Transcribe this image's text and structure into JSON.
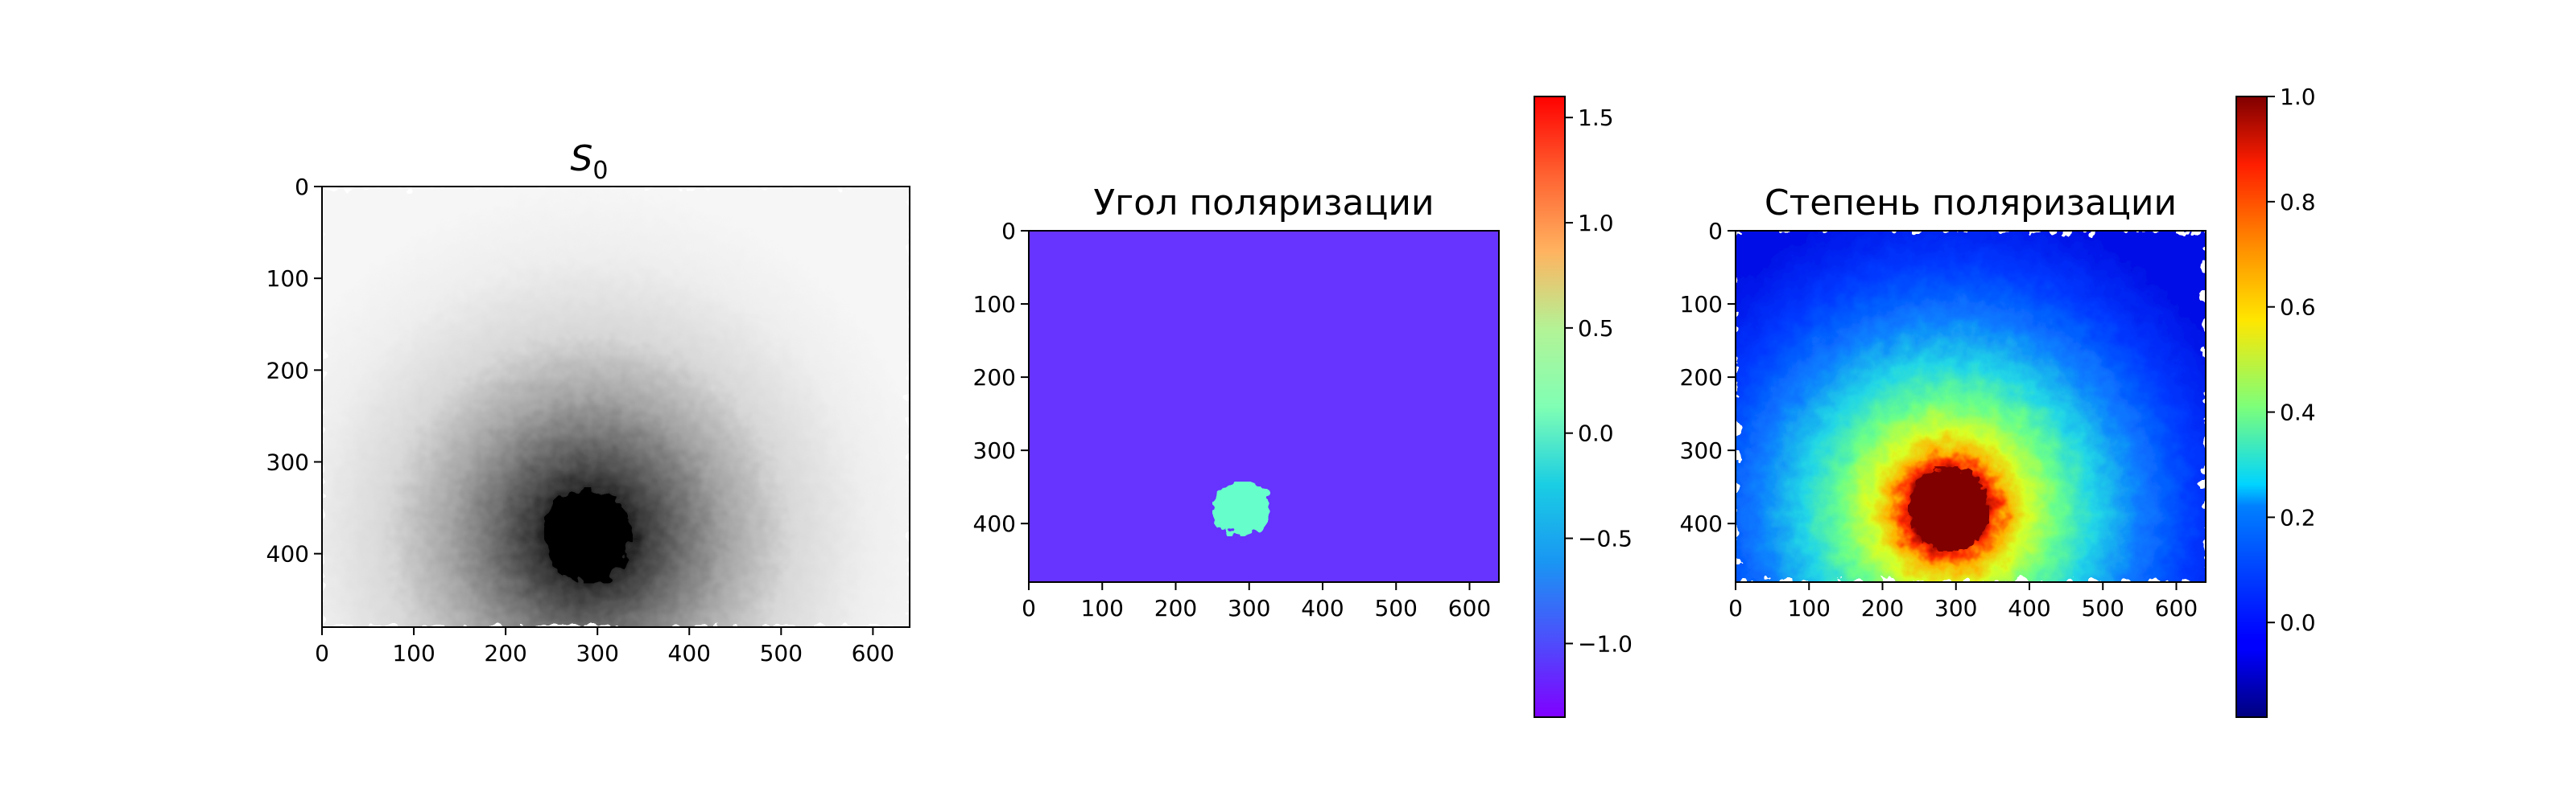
{
  "chart_data": [
    {
      "type": "heatmap",
      "title": "S",
      "title_subscript": "0",
      "colormap": "gray",
      "x_range": [
        0,
        640
      ],
      "y_range": [
        0,
        480
      ],
      "x_ticks": [
        "0",
        "100",
        "200",
        "300",
        "400",
        "500",
        "600"
      ],
      "y_ticks": [
        "0",
        "100",
        "200",
        "300",
        "400"
      ],
      "features": {
        "dark_center": [
          290,
          380
        ]
      }
    },
    {
      "type": "heatmap",
      "title": "Угол поляризации",
      "colormap": "rainbow",
      "x_range": [
        0,
        640
      ],
      "y_range": [
        0,
        480
      ],
      "x_ticks": [
        "0",
        "100",
        "200",
        "300",
        "400",
        "500",
        "600"
      ],
      "y_ticks": [
        "0",
        "100",
        "200",
        "300",
        "400"
      ],
      "background_value": -1.25,
      "blob_value": -0.15,
      "blob_center": [
        290,
        380
      ],
      "colorbar": {
        "range": [
          -1.35,
          1.6
        ],
        "ticks": [
          {
            "value": 1.5,
            "label": "1.5"
          },
          {
            "value": 1.0,
            "label": "1.0"
          },
          {
            "value": 0.5,
            "label": "0.5"
          },
          {
            "value": 0.0,
            "label": "0.0"
          },
          {
            "value": -0.5,
            "label": "−0.5"
          },
          {
            "value": -1.0,
            "label": "−1.0"
          }
        ]
      }
    },
    {
      "type": "heatmap",
      "title": "Степень поляризации",
      "colormap": "jet",
      "x_range": [
        0,
        640
      ],
      "y_range": [
        0,
        480
      ],
      "x_ticks": [
        "0",
        "100",
        "200",
        "300",
        "400",
        "500",
        "600"
      ],
      "y_ticks": [
        "0",
        "100",
        "200",
        "300",
        "400"
      ],
      "peak_center": [
        290,
        380
      ],
      "colorbar": {
        "range": [
          -0.18,
          1.0
        ],
        "ticks": [
          {
            "value": 1.0,
            "label": "1.0"
          },
          {
            "value": 0.8,
            "label": "0.8"
          },
          {
            "value": 0.6,
            "label": "0.6"
          },
          {
            "value": 0.4,
            "label": "0.4"
          },
          {
            "value": 0.2,
            "label": "0.2"
          },
          {
            "value": 0.0,
            "label": "0.0"
          }
        ]
      }
    }
  ]
}
